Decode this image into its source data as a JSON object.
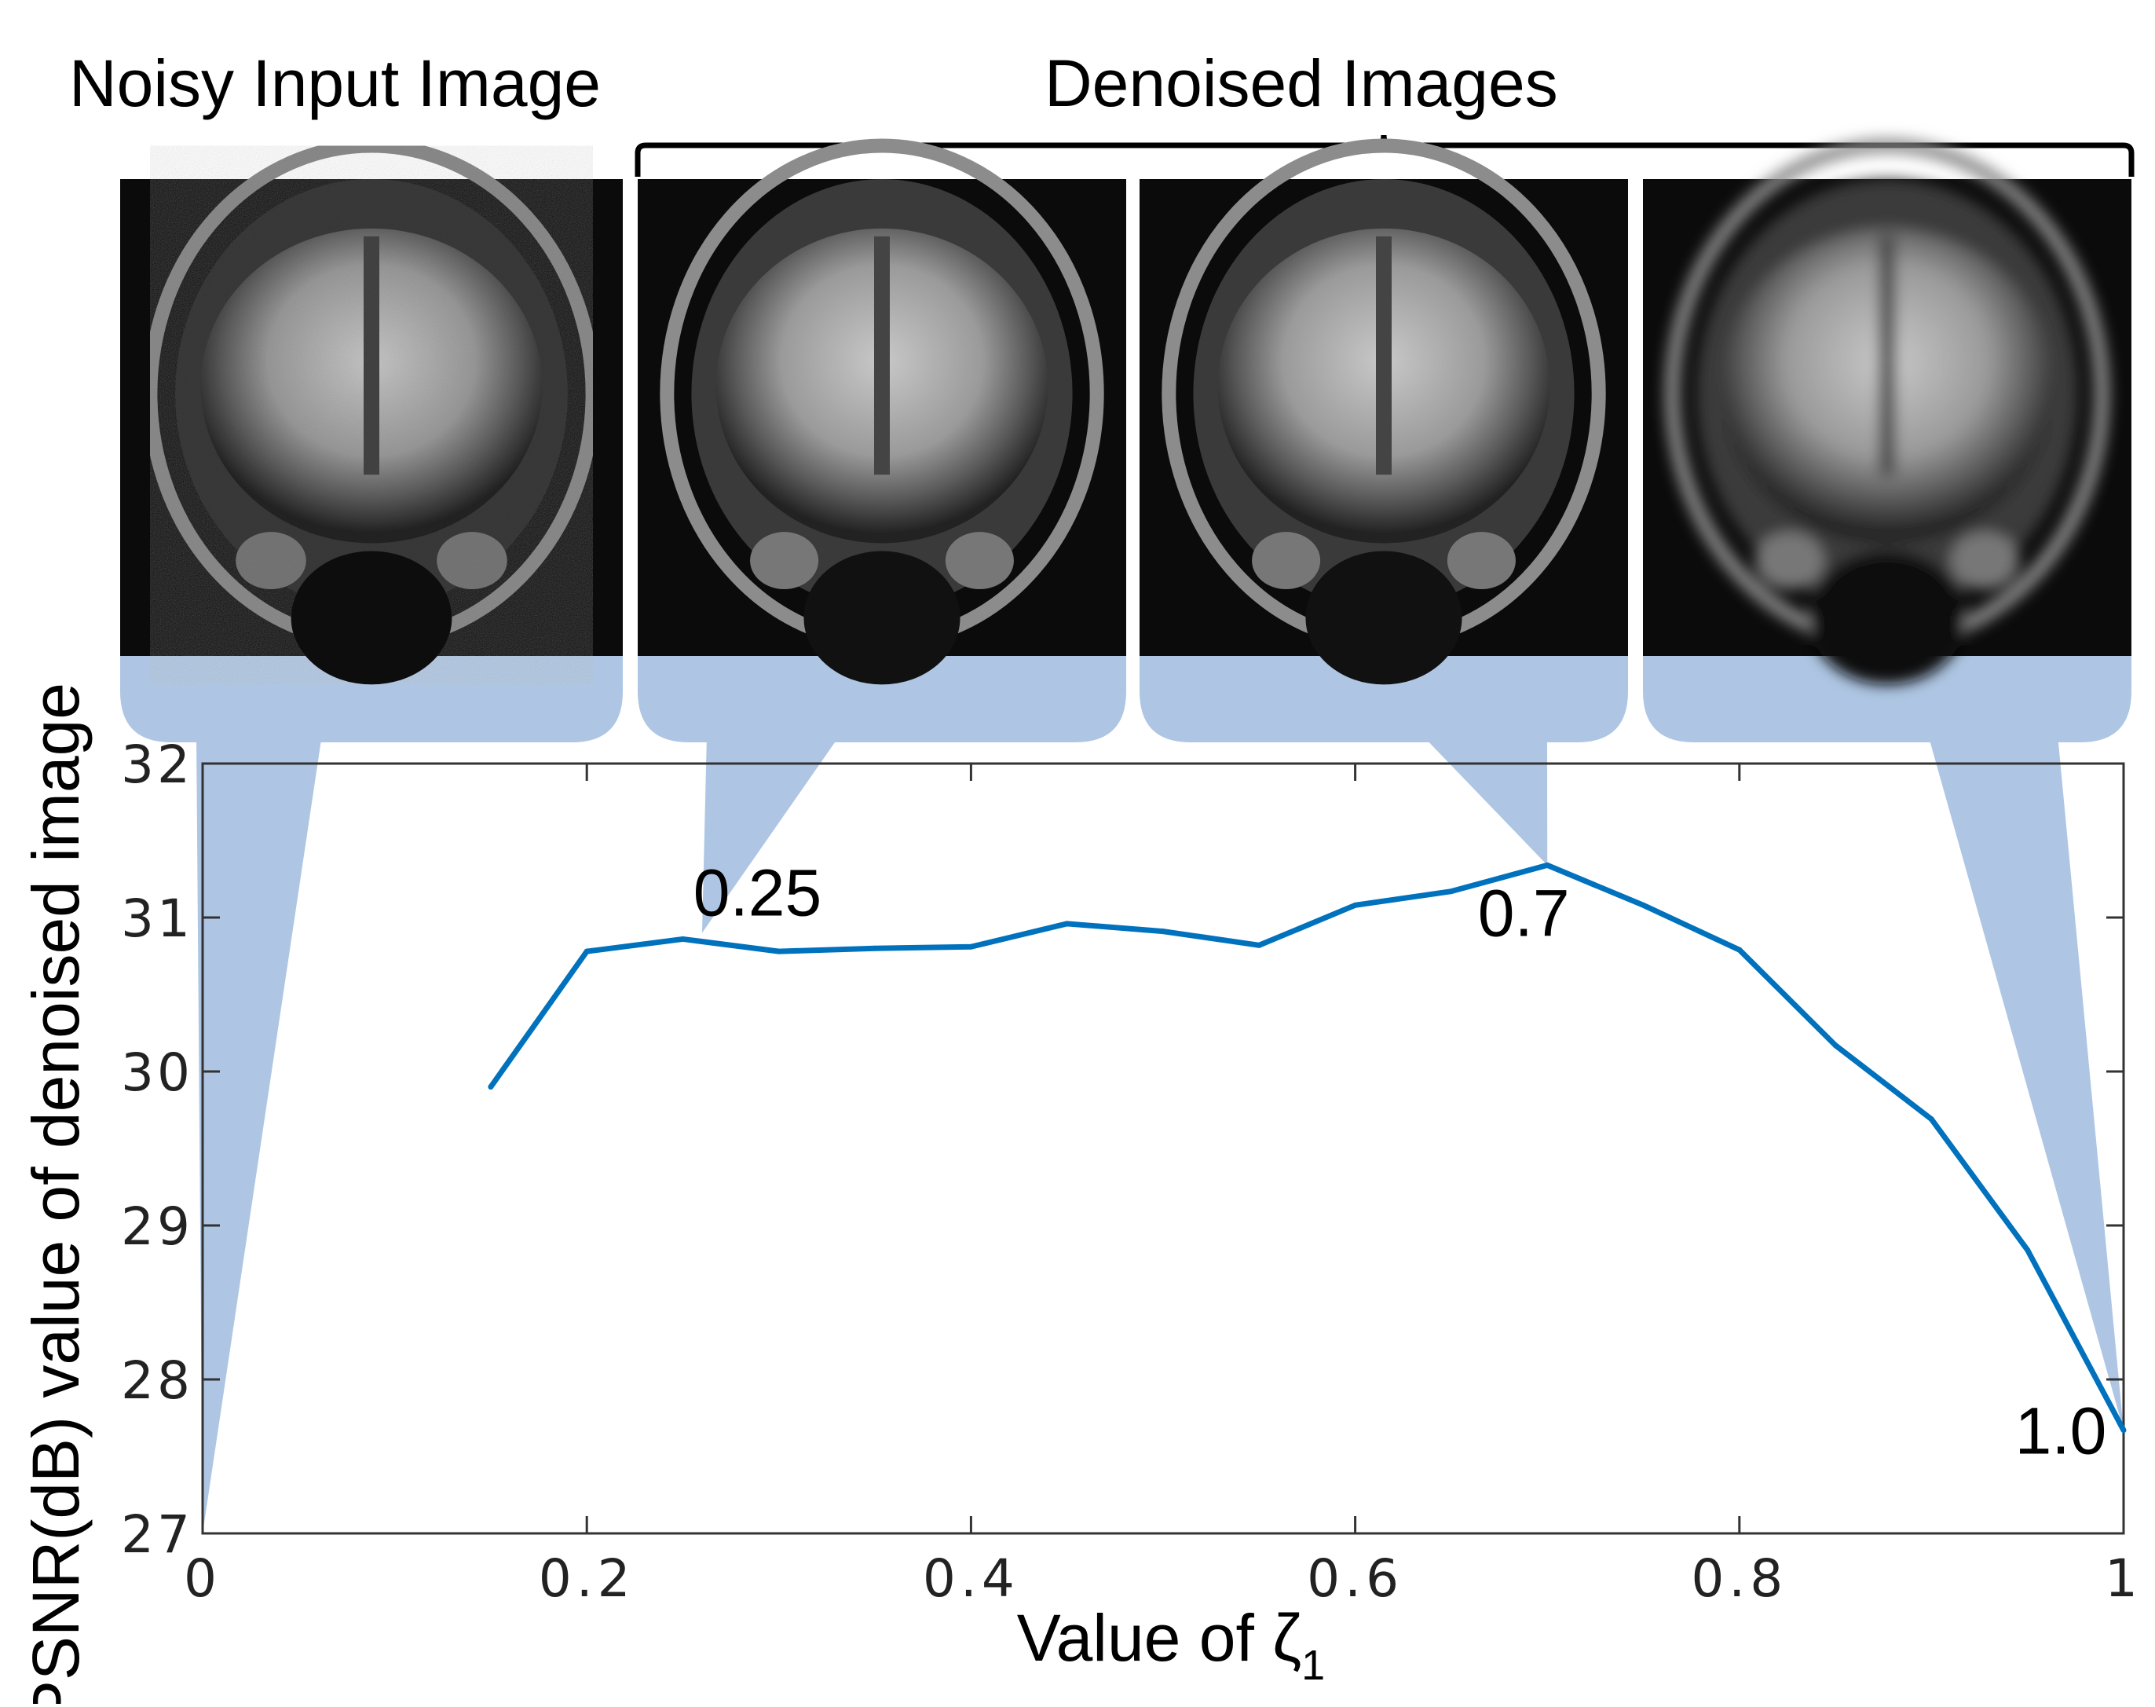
{
  "header": {
    "left_title": "Noisy Input Image",
    "right_title": "Denoised Images"
  },
  "images": [
    {
      "label": "noisy-input-mri",
      "zeta": 0
    },
    {
      "label": "denoised-mri-0.25",
      "zeta": 0.25
    },
    {
      "label": "denoised-mri-0.7",
      "zeta": 0.7
    },
    {
      "label": "denoised-mri-1.0",
      "zeta": 1.0,
      "blurred": true
    }
  ],
  "chart_data": {
    "type": "line",
    "title": "",
    "xlabel": "Value of ζ",
    "xlabel_subscript": "1",
    "ylabel": "PSNR(dB) value of denoised image",
    "xlim": [
      0,
      1
    ],
    "ylim": [
      27,
      32
    ],
    "xticks": [
      {
        "value": 0,
        "label": "0"
      },
      {
        "value": 0.2,
        "label": "0.2"
      },
      {
        "value": 0.4,
        "label": "0.4"
      },
      {
        "value": 0.6,
        "label": "0.6"
      },
      {
        "value": 0.8,
        "label": "0.8"
      },
      {
        "value": 1,
        "label": "1"
      }
    ],
    "yticks": [
      {
        "value": 27,
        "label": "27"
      },
      {
        "value": 28,
        "label": "28"
      },
      {
        "value": 29,
        "label": "29"
      },
      {
        "value": 30,
        "label": "30"
      },
      {
        "value": 31,
        "label": "31"
      },
      {
        "value": 32,
        "label": "32"
      }
    ],
    "grid": false,
    "line_color": "#0072BD",
    "x": [
      0.15,
      0.2,
      0.25,
      0.3,
      0.35,
      0.4,
      0.45,
      0.5,
      0.55,
      0.6,
      0.65,
      0.7,
      0.75,
      0.8,
      0.85,
      0.9,
      0.95,
      1.0
    ],
    "y": [
      29.9,
      30.78,
      30.86,
      30.78,
      30.8,
      30.81,
      30.96,
      30.91,
      30.82,
      31.08,
      31.17,
      31.34,
      31.08,
      30.79,
      30.17,
      29.69,
      28.84,
      27.67
    ],
    "annotations": [
      {
        "text": "0.25",
        "x": 0.25,
        "y": 30.86
      },
      {
        "text": "0.7",
        "x": 0.7,
        "y": 31.34
      },
      {
        "text": "1.0",
        "x": 1.0,
        "y": 27.67
      }
    ],
    "callout_color": "#aec6e3",
    "callout_targets": [
      {
        "image": 0,
        "x": 0,
        "y": 27
      },
      {
        "image": 1,
        "x": 0.26,
        "y": 30.9
      },
      {
        "image": 2,
        "x": 0.7,
        "y": 31.34
      },
      {
        "image": 3,
        "x": 1.0,
        "y": 27.67
      }
    ]
  }
}
